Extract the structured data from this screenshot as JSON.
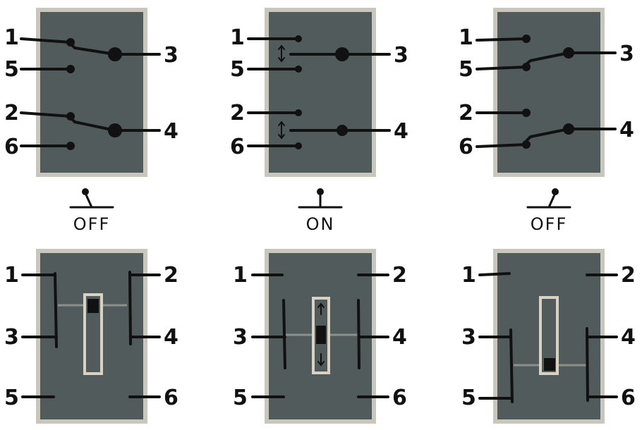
{
  "title": "",
  "colors": {
    "panel": "#515b5b",
    "panel_border": "#c9c6bd",
    "wire": "#111111",
    "slider_border": "#d8d2c2",
    "slider_track": "#8d8f8b",
    "knob": "#111111",
    "background": "#ffffff"
  },
  "top_row": [
    {
      "state_label": "OFF",
      "lever": "left",
      "pins": {
        "left": [
          "1",
          "5",
          "2",
          "6"
        ],
        "right": [
          "3",
          "4"
        ]
      },
      "connections": [
        [
          "1",
          "3"
        ],
        [
          "2",
          "4"
        ]
      ]
    },
    {
      "state_label": "ON",
      "lever": "center",
      "pins": {
        "left": [
          "1",
          "5",
          "2",
          "6"
        ],
        "right": [
          "3",
          "4"
        ]
      },
      "connections": [],
      "arrow_icon": "up-down-arrow-icon"
    },
    {
      "state_label": "OFF",
      "lever": "right",
      "pins": {
        "left": [
          "1",
          "5",
          "2",
          "6"
        ],
        "right": [
          "3",
          "4"
        ]
      },
      "connections": [
        [
          "5",
          "3"
        ],
        [
          "6",
          "4"
        ]
      ]
    }
  ],
  "bottom_row": [
    {
      "slider_position": "top",
      "pins": {
        "left": [
          "1",
          "3",
          "5"
        ],
        "right": [
          "2",
          "4",
          "6"
        ]
      },
      "bridged": [
        [
          "1",
          "3"
        ],
        [
          "2",
          "4"
        ]
      ]
    },
    {
      "slider_position": "middle",
      "pins": {
        "left": [
          "1",
          "3",
          "5"
        ],
        "right": [
          "2",
          "4",
          "6"
        ]
      },
      "bridged": [],
      "arrow_icon": "up-down-arrow-icon"
    },
    {
      "slider_position": "bottom",
      "pins": {
        "left": [
          "1",
          "3",
          "5"
        ],
        "right": [
          "2",
          "4",
          "6"
        ]
      },
      "bridged": [
        [
          "3",
          "5"
        ],
        [
          "4",
          "6"
        ]
      ]
    }
  ]
}
